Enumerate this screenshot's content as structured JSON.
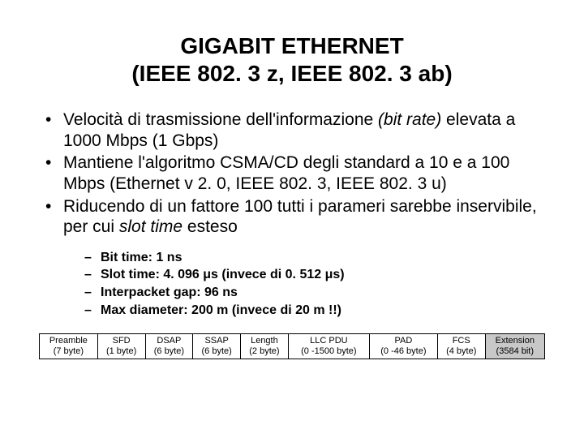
{
  "title_line1": "GIGABIT ETHERNET",
  "title_line2": "(IEEE 802. 3 z, IEEE 802. 3 ab)",
  "bullets": [
    {
      "pre": "Velocità di trasmissione dell'informazione ",
      "it": "(bit rate)",
      "post": " elevata a 1000 Mbps (1 Gbps)"
    },
    {
      "pre": "Mantiene l'algoritmo CSMA/CD degli standard a 10 e a 100 Mbps (Ethernet v 2. 0, IEEE 802. 3, IEEE 802. 3 u)",
      "it": "",
      "post": ""
    },
    {
      "pre": "Riducendo di un fattore 100 tutti i parameri sarebbe inservibile, per cui ",
      "it": "slot time",
      "post": " esteso"
    }
  ],
  "sub": [
    "Bit time: 1 ns",
    "Slot time: 4. 096 μs (invece di 0. 512 μs)",
    "Interpacket gap: 96 ns",
    "Max diameter: 200 m (invece di 20 m !!)"
  ],
  "frame": [
    {
      "n": "Preamble",
      "s": "(7 byte)"
    },
    {
      "n": "SFD",
      "s": "(1 byte)"
    },
    {
      "n": "DSAP",
      "s": "(6 byte)"
    },
    {
      "n": "SSAP",
      "s": "(6 byte)"
    },
    {
      "n": "Length",
      "s": "(2 byte)"
    },
    {
      "n": "LLC PDU",
      "s": "(0 -1500 byte)"
    },
    {
      "n": "PAD",
      "s": "(0 -46 byte)"
    },
    {
      "n": "FCS",
      "s": "(4 byte)"
    },
    {
      "n": "Extension",
      "s": "(3584 bit)",
      "ext": true
    }
  ],
  "colors": {
    "ext_bg": "#c8c8c8"
  }
}
